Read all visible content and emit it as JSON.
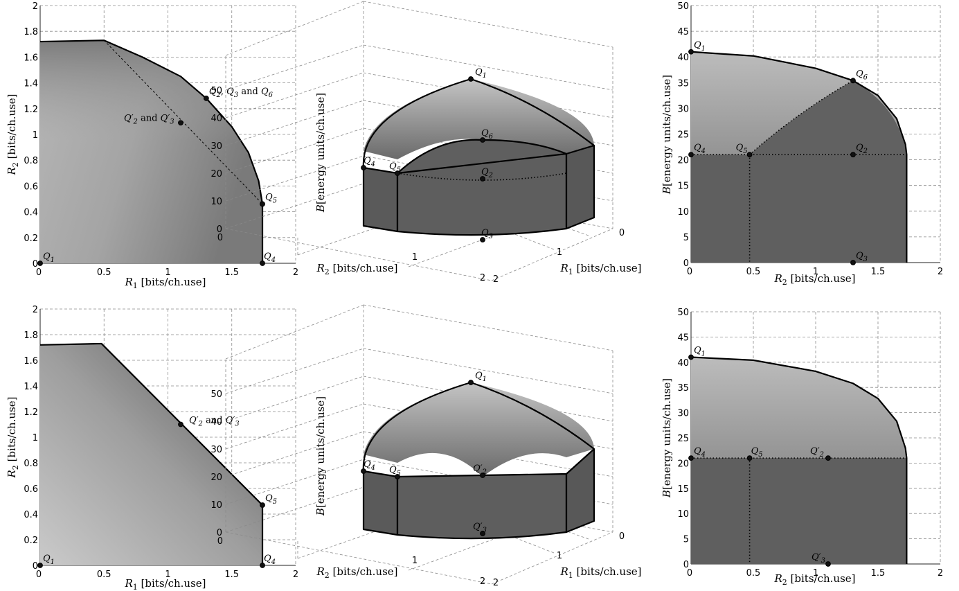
{
  "labels": {
    "r1": "R1 [bits/ch.use]",
    "r2": "R2 [bits/ch.use]",
    "b": "B[energy units/ch.use]"
  },
  "chart_data": [
    {
      "type": "area",
      "panel": "top-left",
      "xlabel": "R1 [bits/ch.use]",
      "ylabel": "R2 [bits/ch.use]",
      "xlim": [
        0,
        2
      ],
      "ylim": [
        0,
        2
      ],
      "grid": true,
      "xticks": [
        0,
        0.5,
        1,
        1.5,
        2
      ],
      "yticks": [
        0,
        0.2,
        0.4,
        0.6,
        0.8,
        1,
        1.2,
        1.4,
        1.6,
        1.8,
        2
      ],
      "boundary": [
        [
          0,
          0
        ],
        [
          0,
          1.72
        ],
        [
          0.5,
          1.73
        ],
        [
          0.8,
          1.6
        ],
        [
          1.1,
          1.45
        ],
        [
          1.3,
          1.28
        ],
        [
          1.5,
          1.06
        ],
        [
          1.63,
          0.86
        ],
        [
          1.71,
          0.64
        ],
        [
          1.74,
          0.46
        ],
        [
          1.74,
          0
        ]
      ],
      "dotted": [
        [
          0.5,
          1.73
        ],
        [
          1.74,
          0.46
        ]
      ],
      "points": [
        {
          "label": "Q1",
          "x": 0,
          "y": 0
        },
        {
          "label": "Q2, Q3 and Q6",
          "x": 1.3,
          "y": 1.28
        },
        {
          "label": "Q′2 and Q′3",
          "x": 1.1,
          "y": 1.09
        },
        {
          "label": "Q5",
          "x": 1.74,
          "y": 0.46
        },
        {
          "label": "Q4",
          "x": 1.74,
          "y": 0
        }
      ]
    },
    {
      "type": "surface-3d",
      "panel": "top-middle",
      "xlabel": "R1 [bits/ch.use]",
      "ylabel": "R2 [bits/ch.use]",
      "zlabel": "B[energy units/ch.use]",
      "zticks": [
        0,
        10,
        20,
        30,
        40,
        50
      ],
      "points": [
        {
          "label": "Q1",
          "z": 54
        },
        {
          "label": "Q6",
          "z": 32
        },
        {
          "label": "Q4",
          "z": 22
        },
        {
          "label": "Q5",
          "z": 20
        },
        {
          "label": "Q2",
          "z": 18
        },
        {
          "label": "Q3",
          "z": 0
        }
      ]
    },
    {
      "type": "area",
      "panel": "top-right",
      "xlabel": "R2 [bits/ch.use]",
      "ylabel": "B[energy units/ch.use]",
      "xlim": [
        0,
        2
      ],
      "ylim": [
        0,
        50
      ],
      "grid": true,
      "xticks": [
        0,
        0.5,
        1,
        1.5,
        2
      ],
      "yticks": [
        0,
        5,
        10,
        15,
        20,
        25,
        30,
        35,
        40,
        45,
        50
      ],
      "boundary": [
        [
          0,
          0
        ],
        [
          0,
          41
        ],
        [
          0.5,
          40.2
        ],
        [
          1,
          37.8
        ],
        [
          1.3,
          35.4
        ],
        [
          1.5,
          32.5
        ],
        [
          1.65,
          28
        ],
        [
          1.72,
          23
        ],
        [
          1.73,
          21
        ],
        [
          1.73,
          0
        ]
      ],
      "points": [
        {
          "label": "Q1",
          "x": 0,
          "y": 41
        },
        {
          "label": "Q6",
          "x": 1.3,
          "y": 35.4
        },
        {
          "label": "Q4",
          "x": 0,
          "y": 21
        },
        {
          "label": "Q5",
          "x": 0.47,
          "y": 21
        },
        {
          "label": "Q2",
          "x": 1.3,
          "y": 21
        },
        {
          "label": "Q3",
          "x": 1.3,
          "y": 0
        }
      ]
    },
    {
      "type": "area",
      "panel": "bottom-left",
      "xlabel": "R1 [bits/ch.use]",
      "ylabel": "R2 [bits/ch.use]",
      "xlim": [
        0,
        2
      ],
      "ylim": [
        0,
        2
      ],
      "grid": true,
      "xticks": [
        0,
        0.5,
        1,
        1.5,
        2
      ],
      "yticks": [
        0,
        0.2,
        0.4,
        0.6,
        0.8,
        1,
        1.2,
        1.4,
        1.6,
        1.8,
        2
      ],
      "boundary": [
        [
          0,
          0
        ],
        [
          0,
          1.72
        ],
        [
          0.48,
          1.73
        ],
        [
          1.74,
          0.47
        ],
        [
          1.74,
          0
        ]
      ],
      "points": [
        {
          "label": "Q1",
          "x": 0,
          "y": 0
        },
        {
          "label": "Q′2 and Q′3",
          "x": 1.1,
          "y": 1.1
        },
        {
          "label": "Q5",
          "x": 1.74,
          "y": 0.47
        },
        {
          "label": "Q4",
          "x": 1.74,
          "y": 0
        }
      ]
    },
    {
      "type": "surface-3d",
      "panel": "bottom-middle",
      "xlabel": "R1 [bits/ch.use]",
      "ylabel": "R2 [bits/ch.use]",
      "zlabel": "B[energy units/ch.use]",
      "zticks": [
        0,
        10,
        20,
        30,
        40,
        50
      ],
      "points": [
        {
          "label": "Q1",
          "z": 54
        },
        {
          "label": "Q4",
          "z": 22
        },
        {
          "label": "Q5",
          "z": 20
        },
        {
          "label": "Q′2",
          "z": 20
        },
        {
          "label": "Q′3",
          "z": 0
        }
      ]
    },
    {
      "type": "area",
      "panel": "bottom-right",
      "xlabel": "R2 [bits/ch.use]",
      "ylabel": "B[energy units/ch.use]",
      "xlim": [
        0,
        2
      ],
      "ylim": [
        0,
        50
      ],
      "grid": true,
      "xticks": [
        0,
        0.5,
        1,
        1.5,
        2
      ],
      "yticks": [
        0,
        5,
        10,
        15,
        20,
        25,
        30,
        35,
        40,
        45,
        50
      ],
      "boundary": [
        [
          0,
          0
        ],
        [
          0,
          41
        ],
        [
          0.5,
          40.4
        ],
        [
          1,
          38.2
        ],
        [
          1.3,
          35.8
        ],
        [
          1.5,
          32.8
        ],
        [
          1.65,
          28.3
        ],
        [
          1.72,
          23
        ],
        [
          1.73,
          21
        ],
        [
          1.73,
          0
        ]
      ],
      "points": [
        {
          "label": "Q1",
          "x": 0,
          "y": 41
        },
        {
          "label": "Q4",
          "x": 0,
          "y": 21
        },
        {
          "label": "Q5",
          "x": 0.47,
          "y": 21
        },
        {
          "label": "Q′2",
          "x": 1.1,
          "y": 21
        },
        {
          "label": "Q′3",
          "x": 1.1,
          "y": 0
        }
      ]
    }
  ]
}
